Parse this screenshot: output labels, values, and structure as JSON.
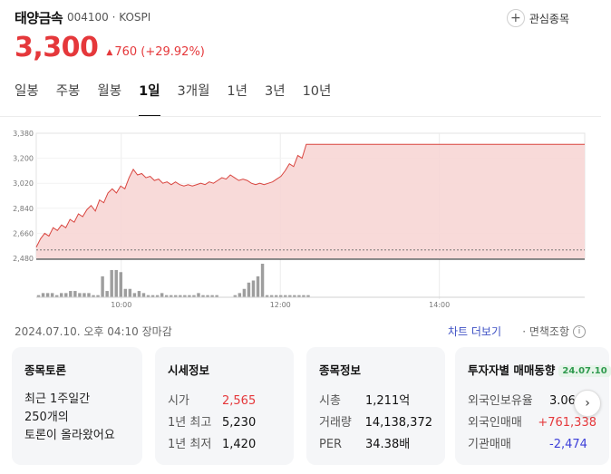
{
  "stock": {
    "name": "태양금속",
    "code": "004100",
    "market": "KOSPI",
    "code_sep": " · "
  },
  "watch_label": "관심종목",
  "price": {
    "value": "3,300",
    "change_arrow": "▲",
    "change": "760 (+29.92%)"
  },
  "tabs": [
    {
      "label": "일봉",
      "active": false
    },
    {
      "label": "주봉",
      "active": false
    },
    {
      "label": "월봉",
      "active": false
    },
    {
      "label": "1일",
      "active": true
    },
    {
      "label": "3개월",
      "active": false
    },
    {
      "label": "1년",
      "active": false
    },
    {
      "label": "3년",
      "active": false
    },
    {
      "label": "10년",
      "active": false
    }
  ],
  "chart_data": {
    "type": "area",
    "y_ticks": [
      "3,380",
      "3,200",
      "3,020",
      "2,840",
      "2,660",
      "2,480"
    ],
    "ylim": [
      2480,
      3380
    ],
    "x_ticks": [
      "10:00",
      "12:00",
      "14:00"
    ],
    "prev_close": 2540,
    "colors": {
      "line": "#d9453f",
      "fill": "#f7d6d5",
      "volume": "#9e9e9e"
    },
    "price_series": [
      [
        0,
        2560
      ],
      [
        2,
        2620
      ],
      [
        4,
        2660
      ],
      [
        6,
        2640
      ],
      [
        8,
        2700
      ],
      [
        10,
        2680
      ],
      [
        12,
        2720
      ],
      [
        14,
        2700
      ],
      [
        16,
        2760
      ],
      [
        18,
        2740
      ],
      [
        20,
        2800
      ],
      [
        22,
        2780
      ],
      [
        24,
        2830
      ],
      [
        26,
        2860
      ],
      [
        28,
        2820
      ],
      [
        30,
        2900
      ],
      [
        32,
        2880
      ],
      [
        34,
        2950
      ],
      [
        36,
        2980
      ],
      [
        38,
        2950
      ],
      [
        40,
        3000
      ],
      [
        42,
        2980
      ],
      [
        44,
        3060
      ],
      [
        46,
        3120
      ],
      [
        48,
        3080
      ],
      [
        50,
        3090
      ],
      [
        52,
        3060
      ],
      [
        54,
        3070
      ],
      [
        56,
        3040
      ],
      [
        58,
        3050
      ],
      [
        60,
        3020
      ],
      [
        62,
        3030
      ],
      [
        64,
        3010
      ],
      [
        66,
        3030
      ],
      [
        68,
        3010
      ],
      [
        70,
        3000
      ],
      [
        72,
        3010
      ],
      [
        74,
        3000
      ],
      [
        76,
        3010
      ],
      [
        78,
        3020
      ],
      [
        80,
        3010
      ],
      [
        82,
        3030
      ],
      [
        84,
        3020
      ],
      [
        86,
        3040
      ],
      [
        88,
        3060
      ],
      [
        90,
        3050
      ],
      [
        92,
        3080
      ],
      [
        94,
        3060
      ],
      [
        96,
        3040
      ],
      [
        98,
        3050
      ],
      [
        100,
        3040
      ],
      [
        102,
        3020
      ],
      [
        104,
        3010
      ],
      [
        106,
        3020
      ],
      [
        108,
        3010
      ],
      [
        110,
        3020
      ],
      [
        112,
        3030
      ],
      [
        114,
        3050
      ],
      [
        116,
        3070
      ],
      [
        118,
        3110
      ],
      [
        120,
        3160
      ],
      [
        122,
        3140
      ],
      [
        124,
        3220
      ],
      [
        126,
        3200
      ],
      [
        128,
        3300
      ],
      [
        130,
        3300
      ],
      [
        260,
        3300
      ]
    ],
    "volume": [
      1,
      2,
      2,
      2,
      1,
      2,
      2,
      3,
      3,
      2,
      2,
      2,
      1,
      1,
      10,
      3,
      13,
      13,
      12,
      4,
      4,
      2,
      3,
      2,
      1,
      1,
      1,
      2,
      1,
      1,
      1,
      1,
      1,
      1,
      1,
      2,
      1,
      1,
      1,
      1,
      0,
      0,
      0,
      1,
      2,
      4,
      7,
      8,
      10,
      16,
      1,
      1,
      1,
      1,
      1,
      1,
      1,
      1,
      1,
      1
    ]
  },
  "meta": {
    "timestamp": "2024.07.10. 오후 04:10 장마감",
    "chart_more": "차트 더보기",
    "disclaimer": "· 면책조항",
    "info_icon": "i"
  },
  "cards": {
    "discussion": {
      "title": "종목토론",
      "line1": "최근 1주일간",
      "line2": "250개의",
      "line3": "토론이 올라왔어요"
    },
    "quote": {
      "title": "시세정보",
      "rows": [
        {
          "k": "시가",
          "v": "2,565",
          "color": "red"
        },
        {
          "k": "1년 최고",
          "v": "5,230",
          "color": ""
        },
        {
          "k": "1년 최저",
          "v": "1,420",
          "color": ""
        }
      ]
    },
    "info": {
      "title": "종목정보",
      "rows": [
        {
          "k": "시총",
          "v": "1,211억"
        },
        {
          "k": "거래량",
          "v": "14,138,372"
        },
        {
          "k": "PER",
          "v": "34.38배"
        }
      ]
    },
    "investor": {
      "title": "투자자별 매매동향",
      "date": "24.07.10",
      "rows": [
        {
          "k": "외국인보유율",
          "v": "3.06%",
          "color": ""
        },
        {
          "k": "외국인매매",
          "v": "+761,338",
          "color": "red"
        },
        {
          "k": "기관매매",
          "v": "-2,474",
          "color": "blue"
        }
      ]
    }
  },
  "next_icon": "›"
}
